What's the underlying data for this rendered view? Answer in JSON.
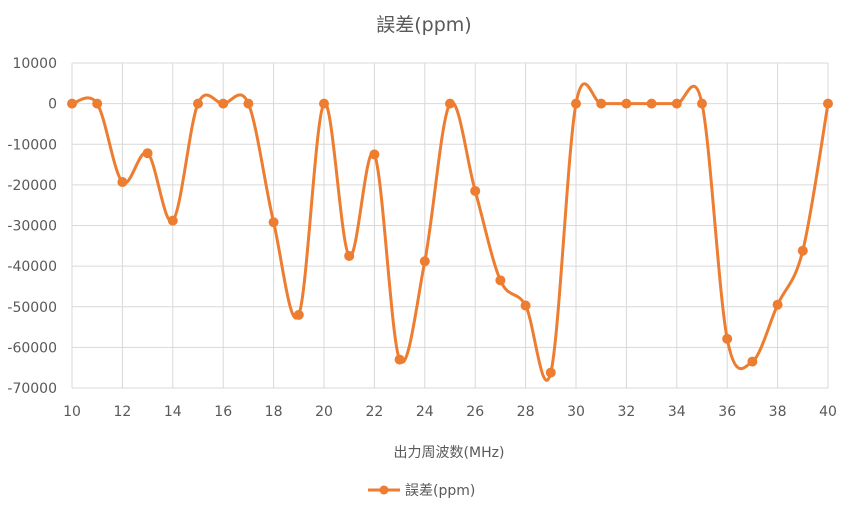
{
  "chart_data": {
    "type": "line",
    "title": "誤差(ppm)",
    "xlabel": "出力周波数(MHz)",
    "ylabel": "",
    "xlim": [
      10,
      40
    ],
    "ylim": [
      -70000,
      10000
    ],
    "x_ticks": [
      "10",
      "12",
      "14",
      "16",
      "18",
      "20",
      "22",
      "24",
      "26",
      "28",
      "30",
      "32",
      "34",
      "36",
      "38",
      "40"
    ],
    "y_ticks": [
      "10000",
      "0",
      "-10000",
      "-20000",
      "-30000",
      "-40000",
      "-50000",
      "-60000",
      "-70000"
    ],
    "grid": true,
    "smooth": true,
    "legend_position": "bottom",
    "series": [
      {
        "name": "誤差(ppm)",
        "color": "#ED7D31",
        "x": [
          10,
          11,
          12,
          13,
          14,
          15,
          16,
          17,
          18,
          19,
          20,
          21,
          22,
          23,
          24,
          25,
          26,
          27,
          28,
          29,
          30,
          31,
          32,
          33,
          34,
          35,
          36,
          37,
          38,
          39,
          40
        ],
        "values": [
          0,
          0,
          -19300,
          -12200,
          -28800,
          0,
          0,
          0,
          -29200,
          -52000,
          0,
          -37500,
          -12500,
          -63000,
          -38800,
          0,
          -21500,
          -43500,
          -49700,
          -66200,
          0,
          0,
          0,
          0,
          0,
          0,
          -57900,
          -63500,
          -49500,
          -36200,
          0
        ]
      }
    ]
  }
}
